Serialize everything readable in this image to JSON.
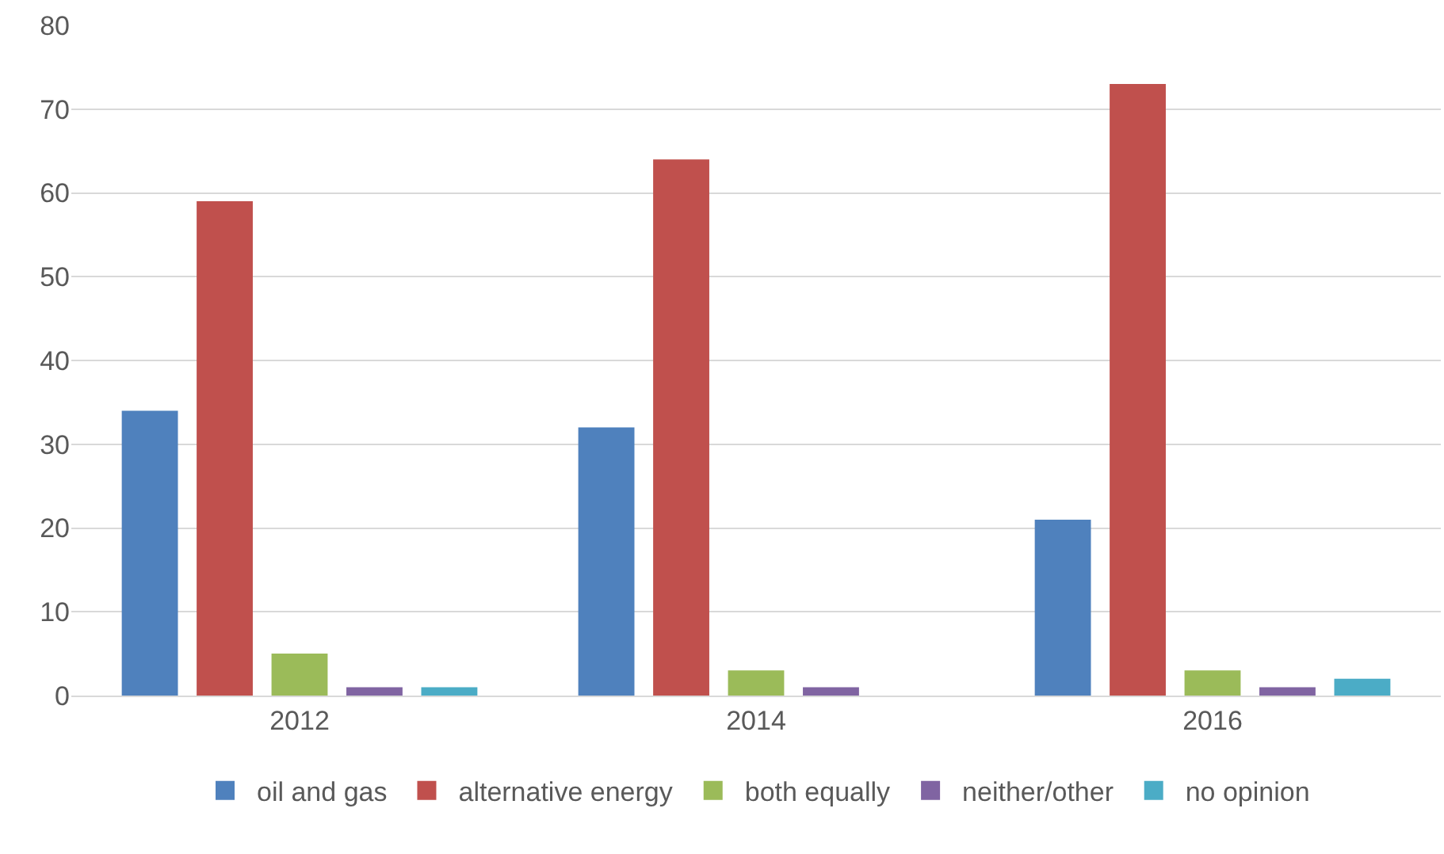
{
  "chart_data": {
    "type": "bar",
    "categories": [
      "2012",
      "2014",
      "2016"
    ],
    "series": [
      {
        "name": "oil and gas",
        "color": "#4f81bd",
        "values": [
          34,
          32,
          21
        ]
      },
      {
        "name": "alternative energy",
        "color": "#c0504d",
        "values": [
          59,
          64,
          73
        ]
      },
      {
        "name": "both equally",
        "color": "#9bbb59",
        "values": [
          5,
          3,
          3
        ]
      },
      {
        "name": "neither/other",
        "color": "#8064a2",
        "values": [
          1,
          1,
          1
        ]
      },
      {
        "name": "no opinion",
        "color": "#4bacc6",
        "values": [
          1,
          0,
          2
        ]
      }
    ],
    "ylim": [
      0,
      80
    ],
    "yticks": [
      0,
      10,
      20,
      30,
      40,
      50,
      60,
      70,
      80
    ],
    "grid": "y",
    "legend": "bottom"
  }
}
